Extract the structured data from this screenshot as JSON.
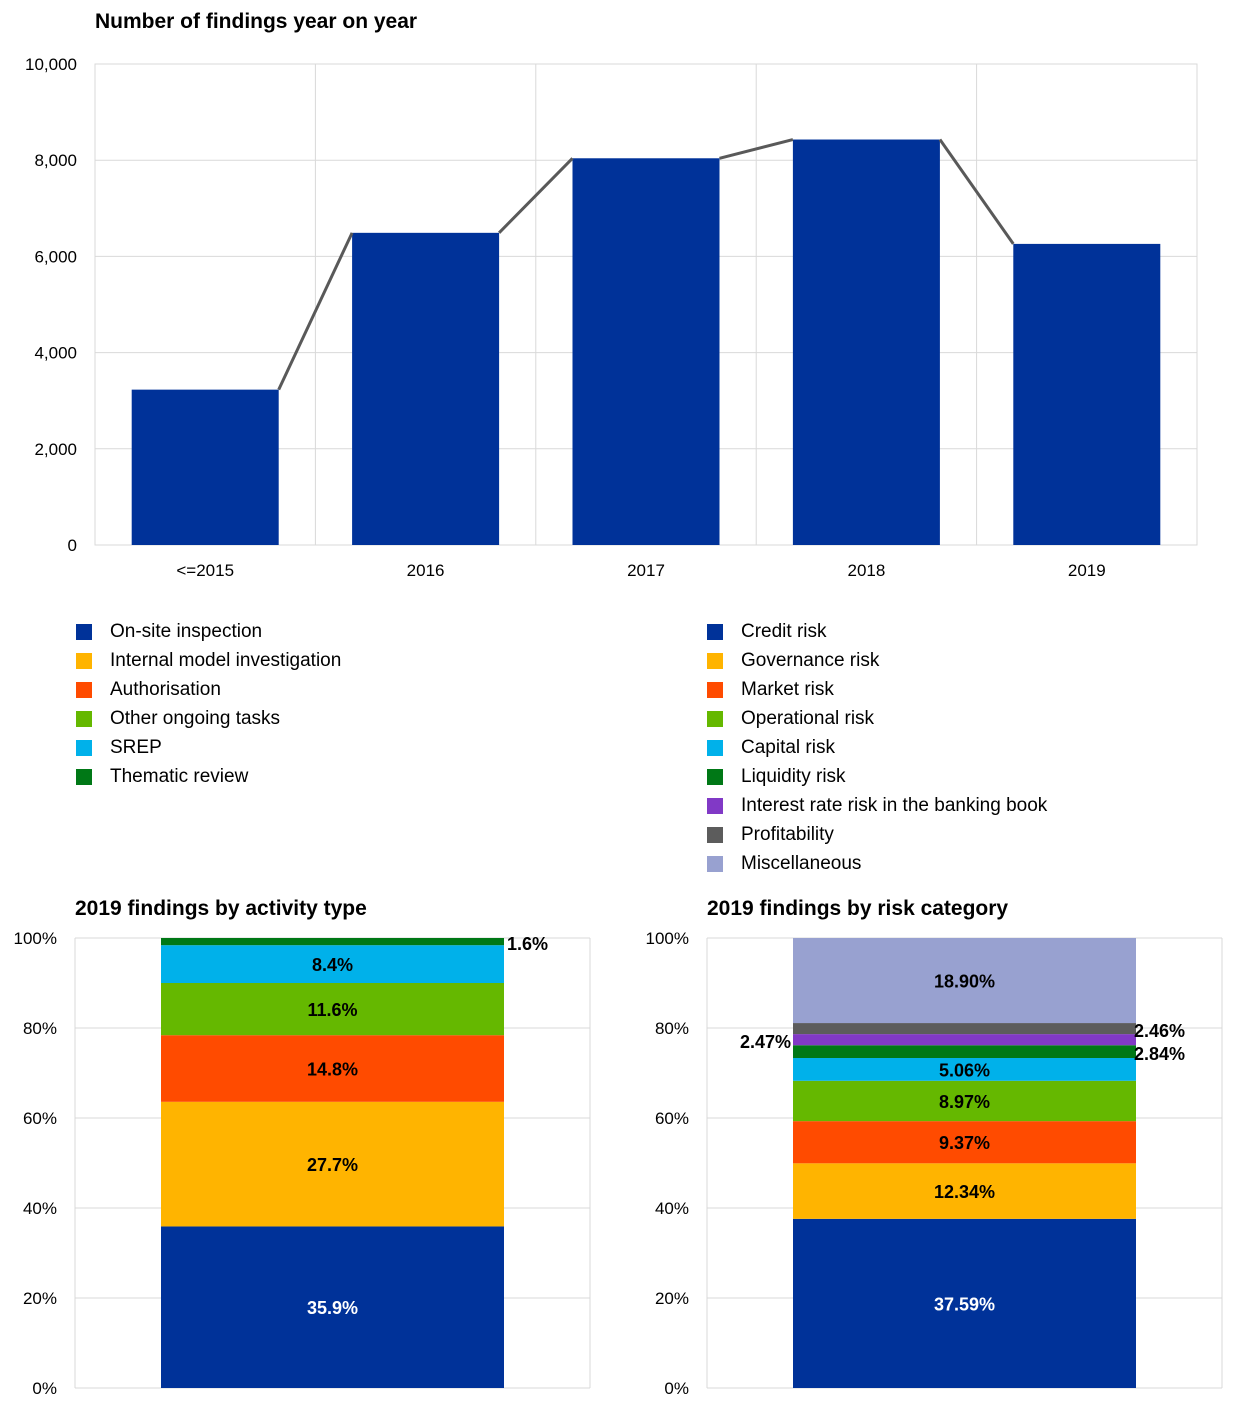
{
  "chart_data": [
    {
      "id": "findings-year",
      "type": "bar",
      "title": "Number of findings year on year",
      "categories": [
        "<=2015",
        "2016",
        "2017",
        "2018",
        "2019"
      ],
      "values": [
        3230,
        6490,
        8040,
        8430,
        6260
      ],
      "line_overlay": true,
      "ylim": [
        0,
        10000
      ],
      "yticks": [
        "0",
        "2,000",
        "4,000",
        "6,000",
        "8,000",
        "10,000"
      ],
      "grid": true,
      "colors": {
        "bar": "#003299",
        "line": "#595959"
      }
    },
    {
      "id": "activity-type",
      "type": "bar",
      "stacked": true,
      "title": "2019 findings by activity type",
      "ylim": [
        0,
        100
      ],
      "yticks": [
        "0%",
        "20%",
        "40%",
        "60%",
        "80%",
        "100%"
      ],
      "series": [
        {
          "name": "On-site inspection",
          "value": 35.9,
          "label": "35.9%",
          "color": "#003299"
        },
        {
          "name": "Internal model investigation",
          "value": 27.7,
          "label": "27.7%",
          "color": "#FFB400"
        },
        {
          "name": "Authorisation",
          "value": 14.8,
          "label": "14.8%",
          "color": "#FF4B00"
        },
        {
          "name": "Other ongoing tasks",
          "value": 11.6,
          "label": "11.6%",
          "color": "#65B800"
        },
        {
          "name": "SREP",
          "value": 8.4,
          "label": "8.4%",
          "color": "#00B1EA"
        },
        {
          "name": "Thematic review",
          "value": 1.6,
          "label": "1.6%",
          "color": "#007816"
        }
      ]
    },
    {
      "id": "risk-category",
      "type": "bar",
      "stacked": true,
      "title": "2019 findings by risk category",
      "ylim": [
        0,
        100
      ],
      "yticks": [
        "0%",
        "20%",
        "40%",
        "60%",
        "80%",
        "100%"
      ],
      "series": [
        {
          "name": "Credit risk",
          "value": 37.59,
          "label": "37.59%",
          "color": "#003299"
        },
        {
          "name": "Governance risk",
          "value": 12.34,
          "label": "12.34%",
          "color": "#FFB400"
        },
        {
          "name": "Market risk",
          "value": 9.37,
          "label": "9.37%",
          "color": "#FF4B00"
        },
        {
          "name": "Operational risk",
          "value": 8.97,
          "label": "8.97%",
          "color": "#65B800"
        },
        {
          "name": "Capital risk",
          "value": 5.06,
          "label": "5.06%",
          "color": "#00B1EA"
        },
        {
          "name": "Liquidity risk",
          "value": 2.84,
          "label": "2.84%",
          "color": "#007816"
        },
        {
          "name": "Interest rate risk in the banking book",
          "value": 2.47,
          "label": "2.47%",
          "color": "#8139C6"
        },
        {
          "name": "Profitability",
          "value": 2.46,
          "label": "2.46%",
          "color": "#5C5C5C"
        },
        {
          "name": "Miscellaneous",
          "value": 18.9,
          "label": "18.90%",
          "color": "#98A1D0"
        }
      ]
    }
  ]
}
